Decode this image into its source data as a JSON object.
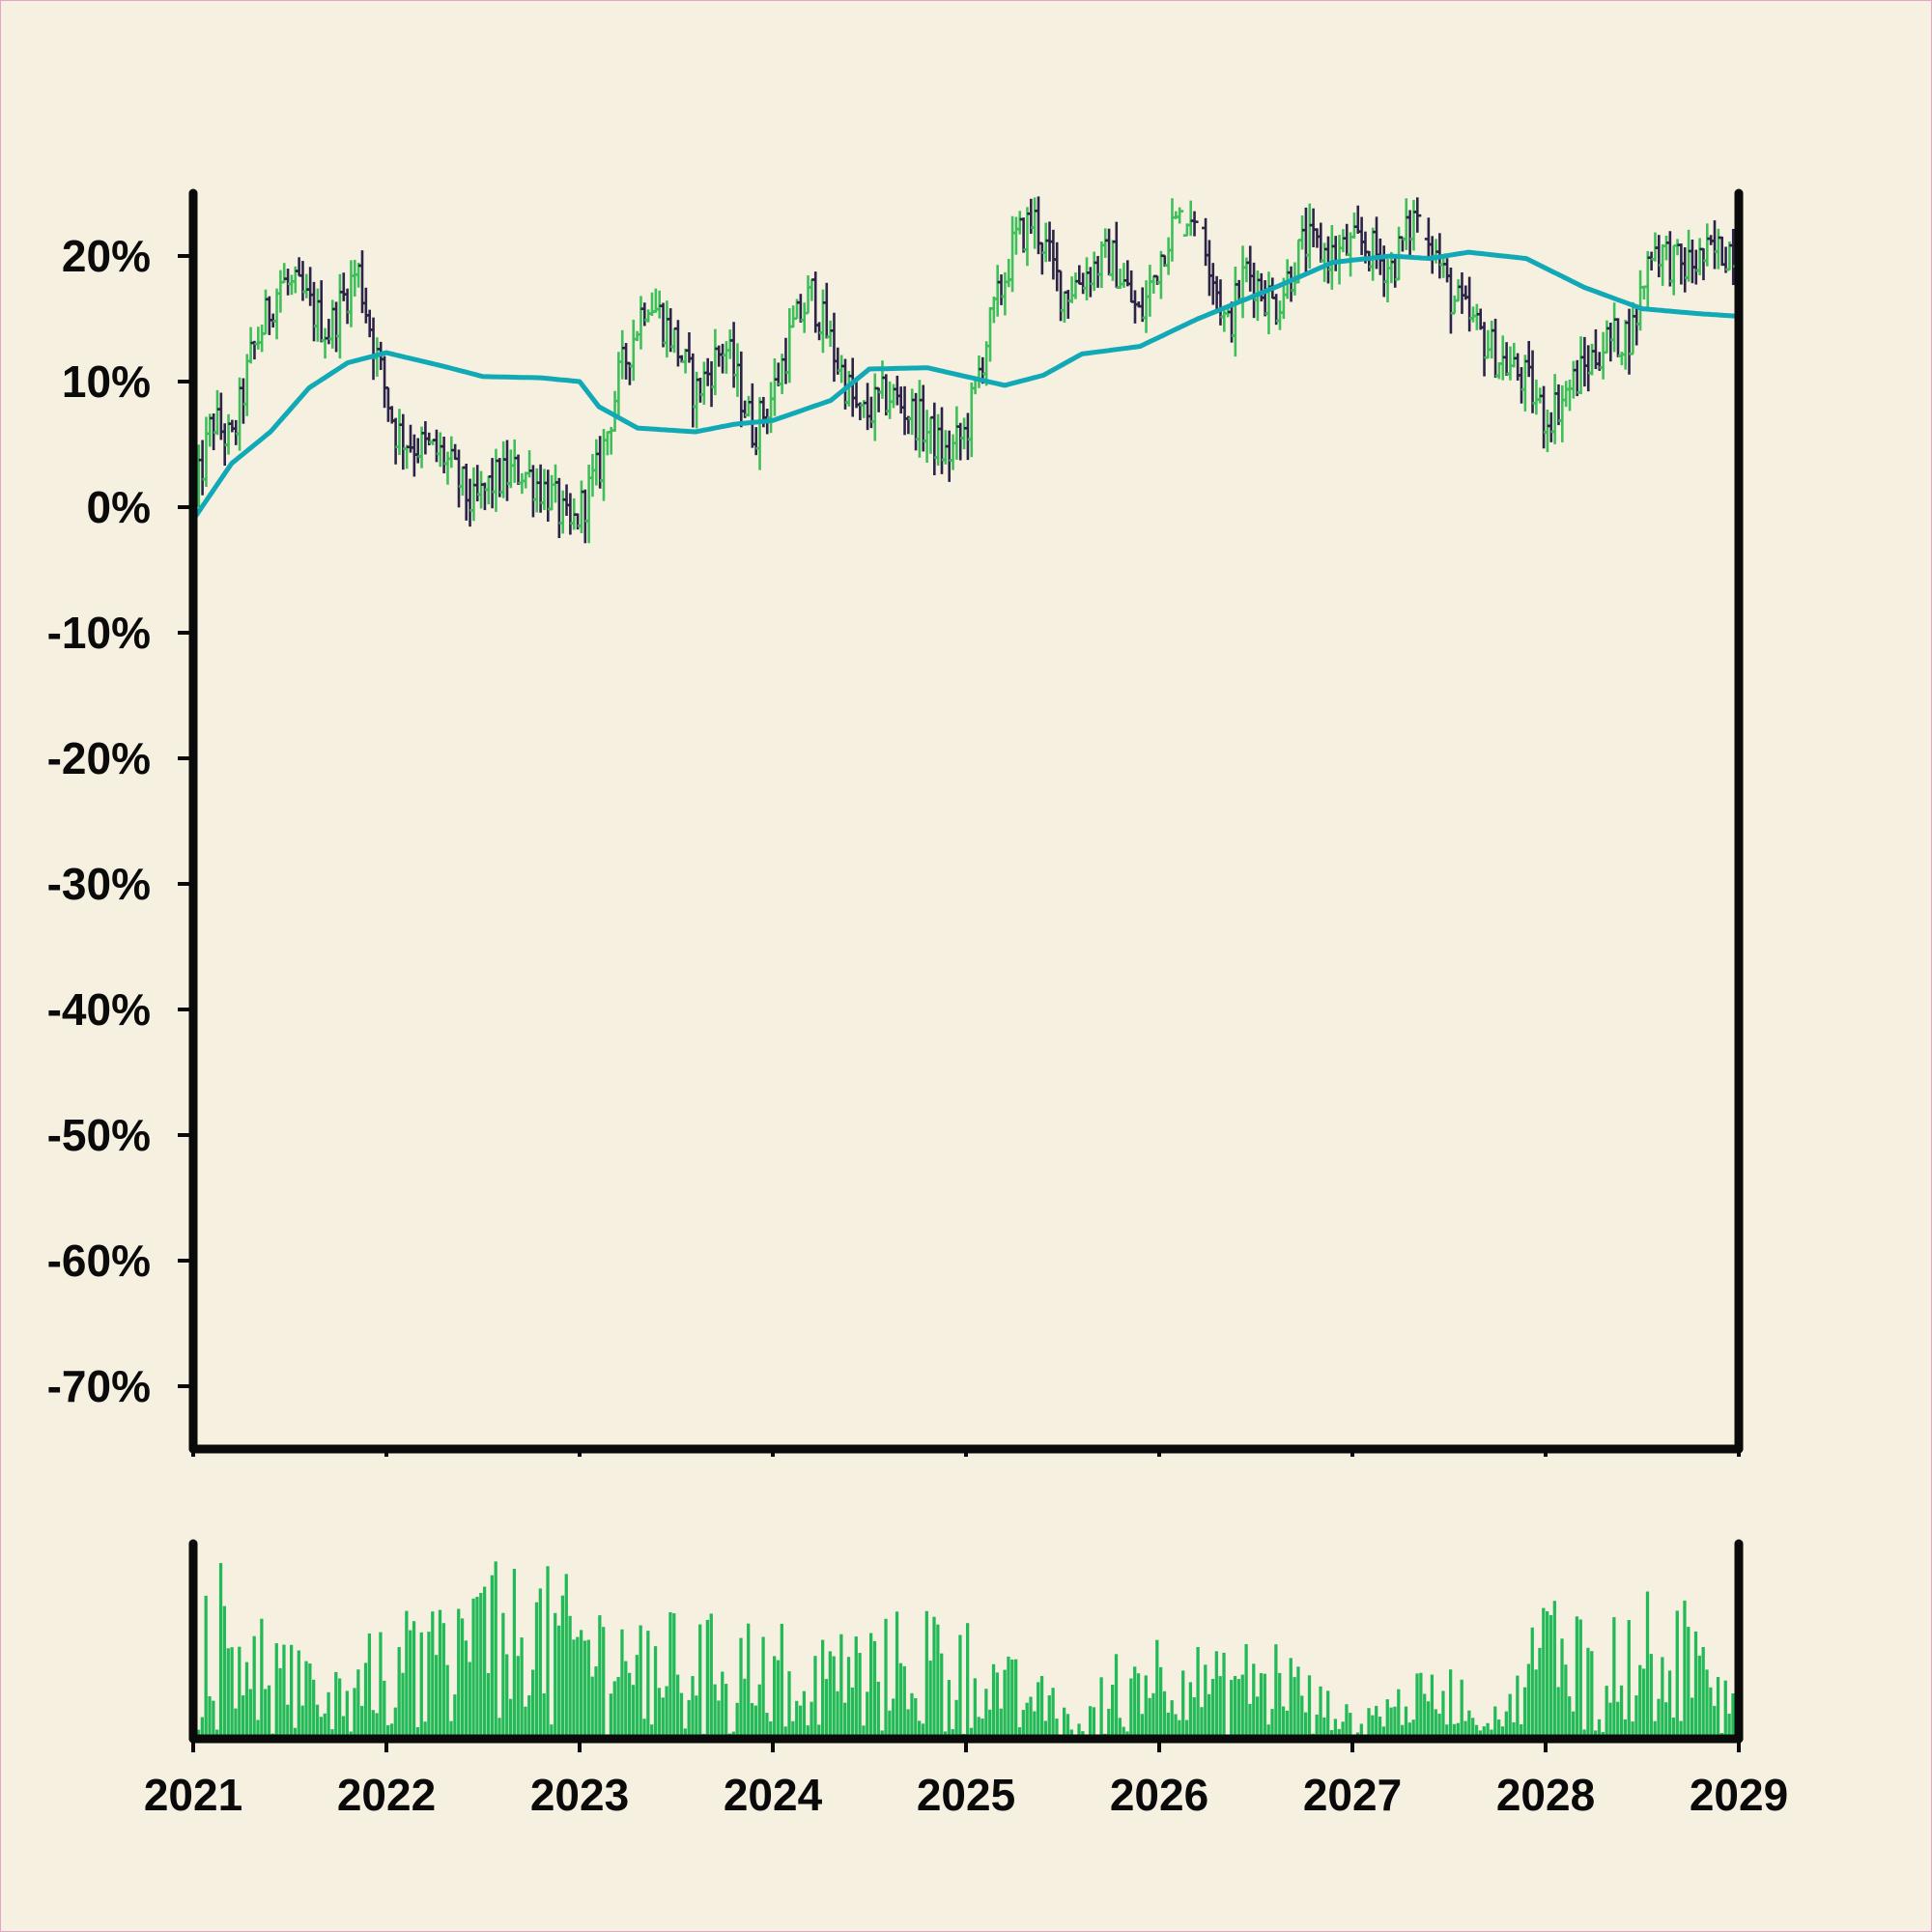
{
  "chart_data": [
    {
      "type": "ohlc",
      "title": "",
      "xlabel": "",
      "ylabel": "",
      "ylim": [
        -75,
        25
      ],
      "y_ticks": [
        "20%",
        "10%",
        "0%",
        "-10%",
        "-20%",
        "-30%",
        "-40%",
        "-50%",
        "-60%",
        "-70%"
      ],
      "y_tick_values": [
        20,
        10,
        0,
        -10,
        -20,
        -30,
        -40,
        -50,
        -60,
        -70
      ],
      "x_ticks": [
        "2021",
        "2022",
        "2023",
        "2024",
        "2025",
        "2026",
        "2027",
        "2028",
        "2029"
      ],
      "x_tick_values": [
        2021,
        2022,
        2023,
        2024,
        2025,
        2026,
        2027,
        2028,
        2029
      ],
      "xlim": [
        2021,
        2029
      ],
      "grid": false,
      "close_series": {
        "x": [
          2021.0,
          2021.1,
          2021.2,
          2021.3,
          2021.45,
          2021.55,
          2021.7,
          2021.85,
          2021.95,
          2022.05,
          2022.15,
          2022.3,
          2022.45,
          2022.55,
          2022.7,
          2022.85,
          2022.95,
          2023.1,
          2023.2,
          2023.35,
          2023.5,
          2023.6,
          2023.75,
          2023.9,
          2024.0,
          2024.1,
          2024.2,
          2024.35,
          2024.45,
          2024.6,
          2024.75,
          2024.9,
          2025.0,
          2025.1,
          2025.25,
          2025.35,
          2025.5,
          2025.65,
          2025.75,
          2025.9,
          2026.05,
          2026.2,
          2026.35,
          2026.45,
          2026.6,
          2026.75,
          2026.9,
          2027.05,
          2027.2,
          2027.35,
          2027.5,
          2027.6,
          2027.75,
          2027.9,
          2028.0,
          2028.15,
          2028.3,
          2028.45,
          2028.55,
          2028.7,
          2028.85,
          2029.0
        ],
        "values": [
          0,
          7,
          5,
          12,
          18,
          17,
          14,
          19,
          12,
          6,
          5,
          4,
          0,
          2,
          3,
          1,
          -2,
          3,
          10,
          17,
          13,
          9,
          13,
          6,
          9,
          14,
          17,
          11,
          7,
          9,
          7,
          4,
          6,
          13,
          21,
          23,
          17,
          19,
          20,
          15,
          22,
          24,
          14,
          19,
          16,
          21,
          20,
          21,
          19,
          24,
          17,
          15,
          12,
          10,
          7,
          10,
          13,
          14,
          21,
          19,
          20,
          21
        ]
      },
      "series": [
        {
          "values": [
            -1,
            3.5,
            6,
            9.5,
            11.5,
            12.3,
            11.2,
            10.4,
            10.3,
            10,
            8,
            6.3,
            6,
            6.6,
            6.9,
            8.5,
            11,
            11.1,
            9.7,
            10.5,
            12.2,
            12.8,
            15,
            17.5,
            19.5,
            20,
            19.8,
            20.3,
            19.8,
            17.5,
            15.8,
            15.4,
            15.2
          ],
          "x": [
            2021.0,
            2021.2,
            2021.4,
            2021.6,
            2021.8,
            2022.0,
            2022.3,
            2022.5,
            2022.8,
            2023.0,
            2023.1,
            2023.3,
            2023.6,
            2023.8,
            2024.0,
            2024.3,
            2024.5,
            2024.8,
            2025.2,
            2025.4,
            2025.6,
            2025.9,
            2026.2,
            2026.6,
            2026.9,
            2027.2,
            2027.4,
            2027.6,
            2027.9,
            2028.2,
            2028.5,
            2028.8,
            2029.0
          ]
        }
      ],
      "colors": {
        "up": "#3fbf5a",
        "down": "#2c2447",
        "ma": "#10a9b5",
        "axis": "#0a0a0a",
        "background": "#f6f0e0"
      }
    },
    {
      "type": "bar",
      "title": "",
      "xlabel": "",
      "ylabel": "",
      "x_ticks": [
        "2021",
        "2022",
        "2023",
        "2024",
        "2025",
        "2026",
        "2027",
        "2028",
        "2029"
      ],
      "x_tick_values": [
        2021,
        2022,
        2023,
        2024,
        2025,
        2026,
        2027,
        2028,
        2029
      ],
      "xlim": [
        2021,
        2029
      ],
      "ylim": [
        0,
        1.15
      ],
      "volume_profile": {
        "x": [
          2021.0,
          2021.3,
          2021.6,
          2022.0,
          2022.3,
          2022.5,
          2022.8,
          2023.2,
          2023.6,
          2024.0,
          2024.3,
          2024.6,
          2024.9,
          2025.1,
          2025.4,
          2025.6,
          2025.8,
          2026.0,
          2026.3,
          2026.6,
          2026.8,
          2027.0,
          2027.3,
          2027.5,
          2027.8,
          2028.0,
          2028.3,
          2028.6,
          2029.0
        ],
        "values": [
          0.85,
          0.6,
          0.3,
          0.45,
          0.6,
          0.7,
          0.7,
          0.55,
          0.5,
          0.5,
          0.45,
          0.5,
          0.6,
          0.4,
          0.25,
          0.1,
          0.4,
          0.45,
          0.35,
          0.45,
          0.25,
          0.12,
          0.25,
          0.3,
          0.15,
          0.65,
          0.55,
          0.6,
          0.45
        ]
      },
      "colors": {
        "bar": "#22b957",
        "axis": "#0a0a0a"
      }
    }
  ]
}
